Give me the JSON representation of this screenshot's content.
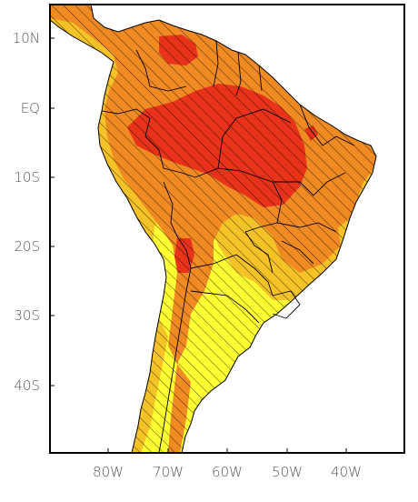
{
  "lat_labels": [
    "10N",
    "EQ",
    "10S",
    "20S",
    "30S",
    "40S"
  ],
  "lon_labels": [
    "80W",
    "70W",
    "60W",
    "50W",
    "40W"
  ],
  "colors": {
    "level_low": "#ffff33",
    "level_mid_low": "#f5c327",
    "level_mid_high": "#f08a22",
    "level_high": "#e8321a",
    "border": "#000000",
    "hatch": "#000000",
    "frame": "#000000"
  }
}
